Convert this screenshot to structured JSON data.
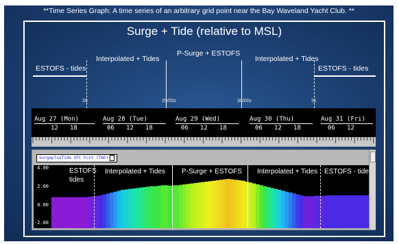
{
  "header_note": "**Time Series Graph: A time series of an arbitrary grid point near the Bay Waveland Yacht Club. **",
  "chart_data": {
    "type": "bar",
    "title": "Surge + Tide (relative to MSL)",
    "series_label": "SurgeplusTide SFC Fcst (TAE)",
    "segments_top": [
      "ESTOFS - tides",
      "Interpolated + Tides",
      "P-Surge + ESTOFS",
      "Interpolated + Tides",
      "ESTOFS - tides"
    ],
    "segments_plot": [
      "ESTOFS tides",
      "Interpolated + Tides",
      "P-Surge + ESTOFS",
      "Interpolated + Tides",
      "ESTOFS - tides"
    ],
    "day_markers": [
      "28",
      "29/00z",
      "30/00z",
      "31"
    ],
    "days": [
      "Aug 27 (Mon)",
      "Aug 28 (Tue)",
      "Aug 29 (Wed)",
      "Aug 30 (Thu)",
      "Aug 31 (Fri)"
    ],
    "hour_ticks": [
      "12",
      "18",
      "06",
      "12",
      "18",
      "06",
      "12",
      "18",
      "06",
      "12",
      "18",
      "06",
      "12"
    ],
    "y_ticks": [
      "4.00",
      "2.00",
      "0.00",
      "-2.00"
    ],
    "ylim": [
      -2.5,
      4.4
    ],
    "values": [
      0.9,
      0.9,
      0.9,
      0.9,
      0.9,
      0.9,
      0.9,
      0.9,
      0.9,
      0.9,
      0.95,
      1.0,
      1.05,
      1.1,
      1.2,
      1.3,
      1.4,
      1.5,
      1.6,
      1.7,
      1.75,
      1.8,
      1.85,
      1.9,
      1.95,
      2.0,
      2.05,
      2.1,
      2.1,
      2.15,
      2.2,
      2.2,
      2.15,
      2.2,
      2.2,
      2.25,
      2.3,
      2.35,
      2.4,
      2.45,
      2.5,
      2.55,
      2.6,
      2.65,
      2.7,
      2.75,
      2.8,
      2.85,
      2.9,
      2.85,
      2.8,
      2.75,
      2.7,
      2.6,
      2.5,
      2.4,
      2.3,
      2.2,
      2.1,
      2.0,
      1.9,
      1.8,
      1.7,
      1.6,
      1.5,
      1.4,
      1.3,
      1.2,
      1.1,
      1.0,
      1.0,
      1.0,
      1.05,
      1.05,
      1.05,
      1.1,
      1.1,
      1.1,
      1.1,
      1.1,
      1.1,
      1.1,
      1.1,
      1.1,
      1.1,
      1.1,
      1.1
    ]
  },
  "colors": {
    "grad_stops": [
      "#8a1cd8",
      "#3b2ee8",
      "#2f7df0",
      "#18c7f0",
      "#1ee6a0",
      "#3fe63a",
      "#b8f01e",
      "#f0f01e",
      "#f0c01e"
    ]
  }
}
